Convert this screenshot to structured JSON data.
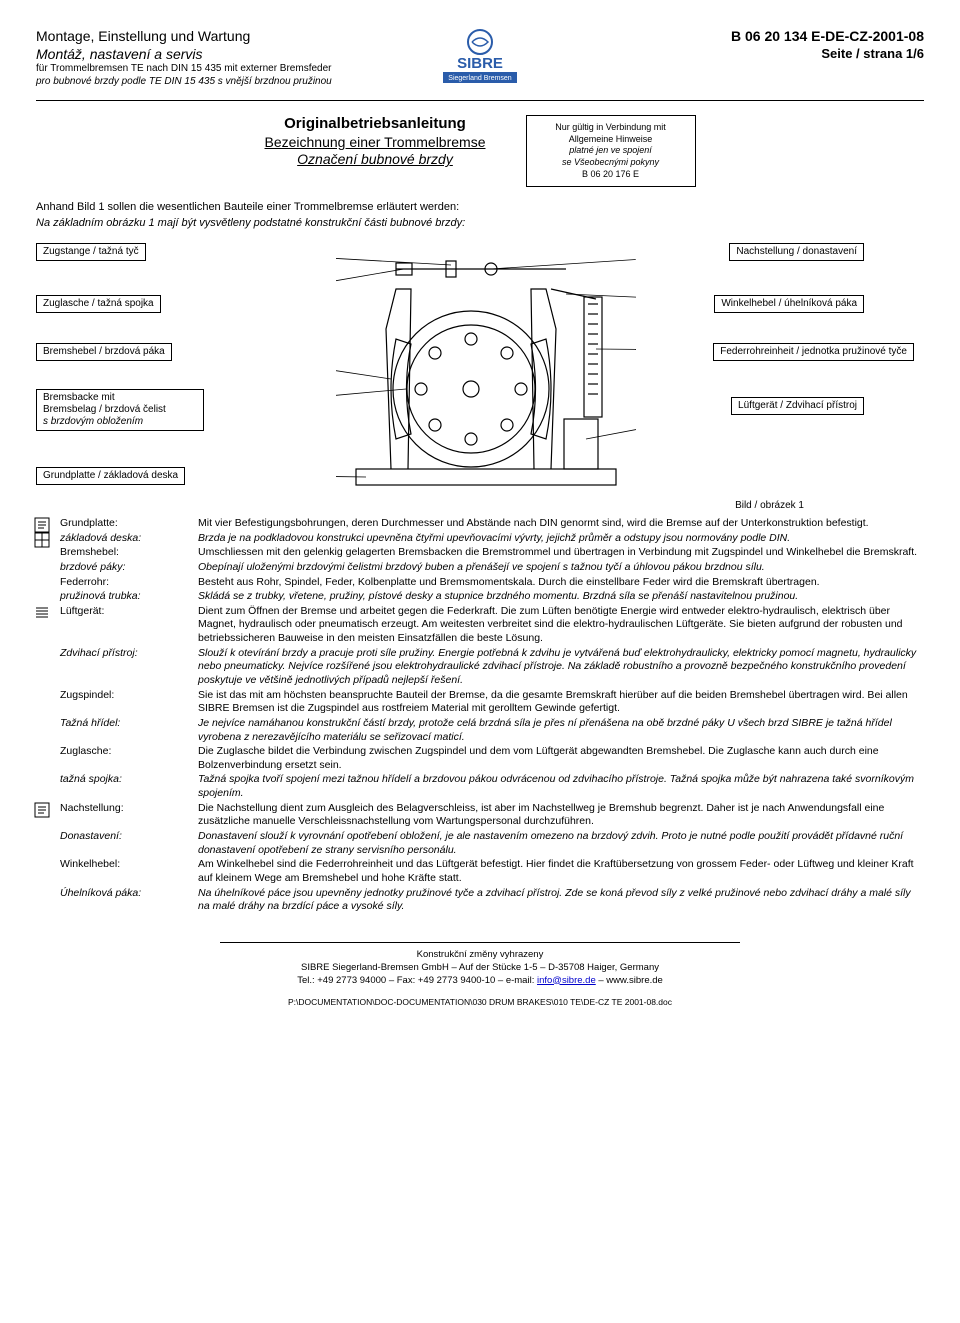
{
  "header": {
    "title_de": "Montage, Einstellung und Wartung",
    "title_cz": "Montáž, nastavení a servis",
    "sub_de": "für Trommelbremsen TE nach DIN 15 435 mit externer Bremsfeder",
    "sub_cz": "pro bubnové brzdy podle TE DIN 15 435 s vnější brzdnou pružinou",
    "logo_text": "SIBRE",
    "logo_sub": "Siegerland Bremsen",
    "doc_no": "B 06 20 134 E-DE-CZ-2001-08",
    "page": "Seite / strana 1/6"
  },
  "title": {
    "main": "Originalbetriebsanleitung",
    "sub_de": "Bezeichnung einer Trommelbremse",
    "sub_cz": "Označení bubnové brzdy"
  },
  "notice": {
    "l1": "Nur gültig in Verbindung mit",
    "l2": "Allgemeine Hinweise",
    "l3": "platné jen ve spojení",
    "l4": "se Všeobecnými pokyny",
    "l5": "B 06 20 176 E"
  },
  "intro": {
    "de": "Anhand Bild 1 sollen die wesentlichen Bauteile einer Trommelbremse erläutert werden:",
    "cz": "Na základním obrázku 1 mají být vysvětleny podstatné konstrukční části bubnové brzdy:"
  },
  "labels": {
    "zugstange": "Zugstange / tažná tyč",
    "zuglasche": "Zuglasche / tažná spojka",
    "bremshebel": "Bremshebel / brzdová páka",
    "bremsbacke_l1": "Bremsbacke mit",
    "bremsbacke_l2": "Bremsbelag / brzdová čelist",
    "bremsbacke_l3": "s brzdovým obložením",
    "grundplatte": "Grundplatte / základová deska",
    "nachstellung": "Nachstellung / donastavení",
    "winkelhebel": "Winkelhebel / úhelníková páka",
    "federrohr": "Federrohreinheit / jednotka pružinové tyče",
    "luftgerat": "Lüftgerät / Zdvihací přístroj",
    "caption": "Bild / obrázek 1"
  },
  "defs": [
    {
      "term": "Grundplatte:",
      "desc": "Mit vier Befestigungsbohrungen, deren Durchmesser und Abstände nach DIN genormt sind, wird die Bremse auf der Unterkonstruktion befestigt.",
      "icon": "note"
    },
    {
      "term": "základová deska:",
      "desc": "Brzda je na podkladovou konstrukci upevněna čtyřmi upevňovacími vývrty, jejichž průměr a odstupy jsou normovány podle DIN.",
      "italic": true,
      "icon": "grid"
    },
    {
      "term": "Bremshebel:",
      "desc": "Umschliessen mit den gelenkig gelagerten Bremsbacken die Bremstrommel und übertragen in Verbindung mit Zugspindel und Winkelhebel die Bremskraft."
    },
    {
      "term": "brzdové páky:",
      "desc": "Obepínají uloženými brzdovými čelistmi brzdový buben a přenášejí ve spojení s tažnou tyčí a úhlovou pákou brzdnou sílu.",
      "italic": true
    },
    {
      "term": "Federrohr:",
      "desc": "Besteht aus Rohr, Spindel, Feder, Kolbenplatte und Bremsmomentskala. Durch die einstellbare Feder wird die Bremskraft übertragen."
    },
    {
      "term": "pružinová trubka:",
      "desc": "Skládá se z trubky, vřetene, pružiny, pístové desky a stupnice brzdného momentu. Brzdná síla se přenáší nastavitelnou pružinou.",
      "italic": true
    },
    {
      "term": "Lüftgerät:",
      "desc": "Dient zum Öffnen der Bremse und arbeitet gegen die Federkraft. Die zum Lüften benötigte Energie wird entweder elektro-hydraulisch, elektrisch über Magnet, hydraulisch oder pneumatisch erzeugt. Am weitesten verbreitet sind die elektro-hydraulischen Lüftgeräte. Sie bieten aufgrund der robusten und betriebssicheren Bauweise in den meisten Einsatzfällen die beste Lösung.",
      "icon": "lines"
    },
    {
      "term": "Zdvihací přístroj:",
      "desc": "Slouží k otevírání brzdy a pracuje proti síle pružiny. Energie potřebná k zdvihu je vytvářená buď elektrohydraulicky, elektricky pomocí magnetu, hydraulicky nebo pneumaticky. Nejvíce rozšířené jsou elektrohydraulické zdvihací přístroje. Na základě robustního a provozně bezpečného konstrukčního provedení poskytuje ve většině jednotlivých případů nejlepší řešení.",
      "italic": true
    },
    {
      "term": "Zugspindel:",
      "desc": "Sie ist das mit am höchsten beanspruchte Bauteil der Bremse, da die gesamte Bremskraft hierüber auf die beiden Bremshebel übertragen wird. Bei allen SIBRE Bremsen ist die Zugspindel aus rostfreiem Material mit gerolltem Gewinde gefertigt."
    },
    {
      "term": "Tažná hřídel:",
      "desc": "Je nejvíce namáhanou konstrukční částí brzdy, protože celá brzdná síla je přes ní přenášena na obě brzdné páky U všech brzd SIBRE je tažná hřídel vyrobena z nerezavějícího materiálu se seřizovací maticí.",
      "italic": true
    },
    {
      "term": "Zuglasche:",
      "desc": "Die Zuglasche bildet die Verbindung zwischen Zugspindel und dem vom Lüftgerät abgewandten Bremshebel. Die Zuglasche kann auch durch eine Bolzenverbindung ersetzt sein."
    },
    {
      "term": "tažná spojka:",
      "desc": "Tažná spojka tvoří spojení mezi tažnou hřídelí a brzdovou pákou odvrácenou od zdvihacího přístroje. Tažná spojka může být nahrazena také svorníkovým spojením.",
      "italic": true
    },
    {
      "term": "Nachstellung:",
      "desc": "Die Nachstellung dient zum Ausgleich des Belagverschleiss, ist aber im Nachstellweg je Bremshub begrenzt. Daher ist je nach Anwendungsfall eine zusätzliche manuelle Verschleissnachstellung vom Wartungspersonal durchzuführen.",
      "icon": "note"
    },
    {
      "term": "Donastavení:",
      "desc": "Donastavení slouží k vyrovnání opotřebení obložení, je ale nastavením omezeno na brzdový zdvih. Proto je nutné podle použití provádět přídavné ruční donastavení opotřebení ze strany servisního personálu.",
      "italic": true
    },
    {
      "term": "Winkelhebel:",
      "desc": "Am Winkelhebel sind die Federrohreinheit und das Lüftgerät befestigt. Hier findet die Kraftübersetzung von grossem Feder- oder Lüftweg und kleiner Kraft auf kleinem Wege am Bremshebel und hohe Kräfte statt."
    },
    {
      "term": "Úhelníková páka:",
      "desc": "Na úhelníkové páce jsou upevněny jednotky pružinové tyče a zdvihací přístroj. Zde se koná převod síly z velké pružinové nebo zdvihací dráhy a malé síly na malé dráhy na brzdící páce a vysoké síly.",
      "italic": true
    }
  ],
  "footer": {
    "l1": "Konstrukční změny vyhrazeny",
    "l2a": "SIBRE Siegerland-Bremsen GmbH – Auf der Stücke 1-5 – D-35708 Haiger, Germany",
    "l3a": "Tel.: +49 2773 94000 – Fax: +49 2773 9400-10 – e-mail: ",
    "l3mail": "info@sibre.de",
    "l3b": " – www.sibre.de",
    "tiny": "P:\\DOCUMENTATION\\DOC-DOCUMENTATION\\030 DRUM BRAKES\\010 TE\\DE-CZ    TE    2001-08.doc"
  },
  "colors": {
    "logo_blue": "#2a5caa",
    "stroke": "#000000"
  }
}
